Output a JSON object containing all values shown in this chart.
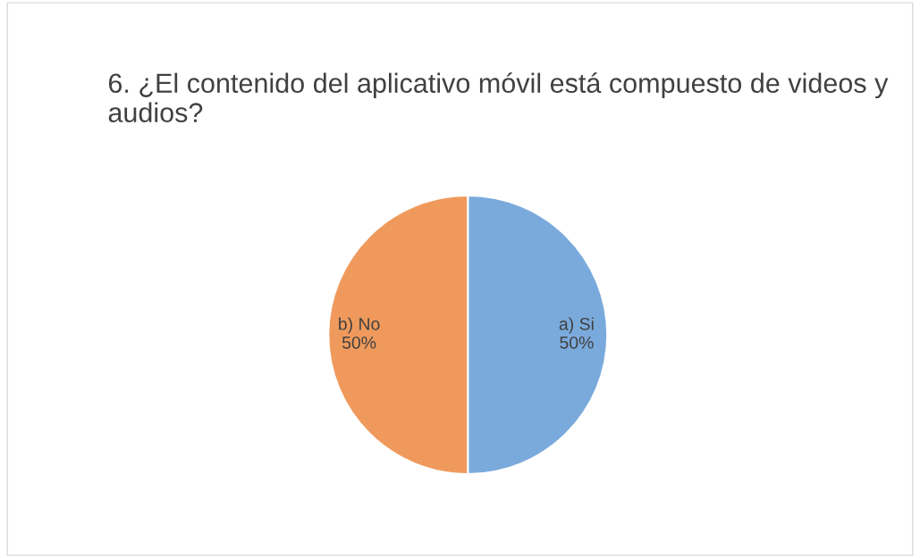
{
  "chart_data": {
    "type": "pie",
    "title": "6. ¿El contenido del aplicativo móvil está compuesto de videos y audios?",
    "categories": [
      "a) Si",
      "b) No"
    ],
    "values": [
      50,
      50
    ],
    "value_labels": [
      "50%",
      "50%"
    ],
    "colors": [
      "#7aaadc",
      "#ef9a5c"
    ],
    "legend": false
  }
}
